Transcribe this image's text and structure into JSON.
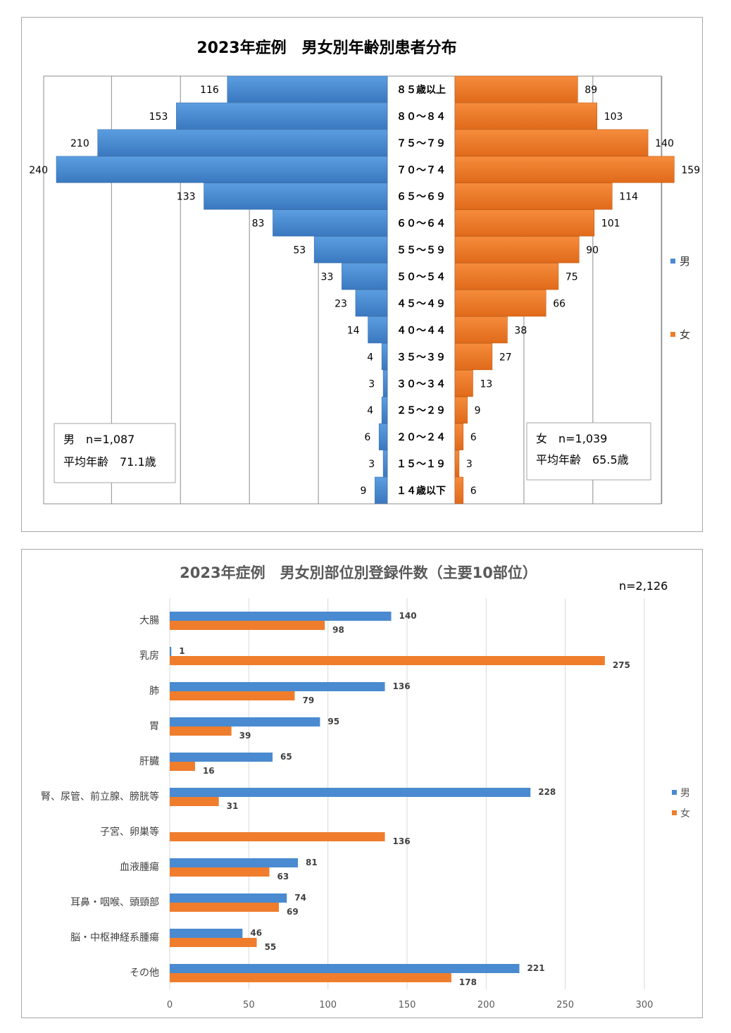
{
  "chart_data": [
    {
      "type": "bar",
      "orientation": "horizontal-pyramid",
      "title": "2023年症例　男女別年齢別患者分布",
      "categories": [
        "８５歳以上",
        "８０～８４",
        "７５～７９",
        "７０～７４",
        "６５～６９",
        "６０～６４",
        "５５～５９",
        "５０～５４",
        "４５～４９",
        "４０～４４",
        "３５～３９",
        "３０～３４",
        "２５～２９",
        "２０～２４",
        "１５～１９",
        "１４歳以下"
      ],
      "series": [
        {
          "name": "男",
          "color": "#4a8ad0",
          "values": [
            116,
            153,
            210,
            240,
            133,
            83,
            53,
            33,
            23,
            14,
            4,
            3,
            4,
            6,
            3,
            9
          ]
        },
        {
          "name": "女",
          "color": "#ef7d2c",
          "values": [
            89,
            103,
            140,
            159,
            114,
            101,
            90,
            75,
            66,
            38,
            27,
            13,
            9,
            6,
            3,
            6
          ]
        }
      ],
      "xlim": [
        0,
        240
      ],
      "grid": true,
      "legend": "right",
      "annotations": {
        "male_n": "男　n=1,087",
        "male_mean": "平均年齢　71.1歳",
        "female_n": "女　n=1,039",
        "female_mean": "平均年齢　65.5歳"
      }
    },
    {
      "type": "bar",
      "orientation": "horizontal",
      "title": "2023年症例　男女別部位別登録件数（主要10部位）",
      "subtitle": "n=2,126",
      "categories": [
        "大腸",
        "乳房",
        "肺",
        "胃",
        "肝臓",
        "腎、尿管、前立腺、膀胱等",
        "子宮、卵巣等",
        "血液腫瘍",
        "耳鼻・咽喉、頭頸部",
        "脳・中枢神経系腫瘍",
        "その他"
      ],
      "series": [
        {
          "name": "男",
          "color": "#4a8ad0",
          "values": [
            140,
            1,
            136,
            95,
            65,
            228,
            null,
            81,
            74,
            46,
            221
          ]
        },
        {
          "name": "女",
          "color": "#ef7d2c",
          "values": [
            98,
            275,
            79,
            39,
            16,
            31,
            136,
            63,
            69,
            55,
            178
          ]
        }
      ],
      "xlim": [
        0,
        300
      ],
      "xticks": [
        0,
        50,
        100,
        150,
        200,
        250,
        300
      ],
      "grid": true,
      "legend": "right"
    }
  ]
}
